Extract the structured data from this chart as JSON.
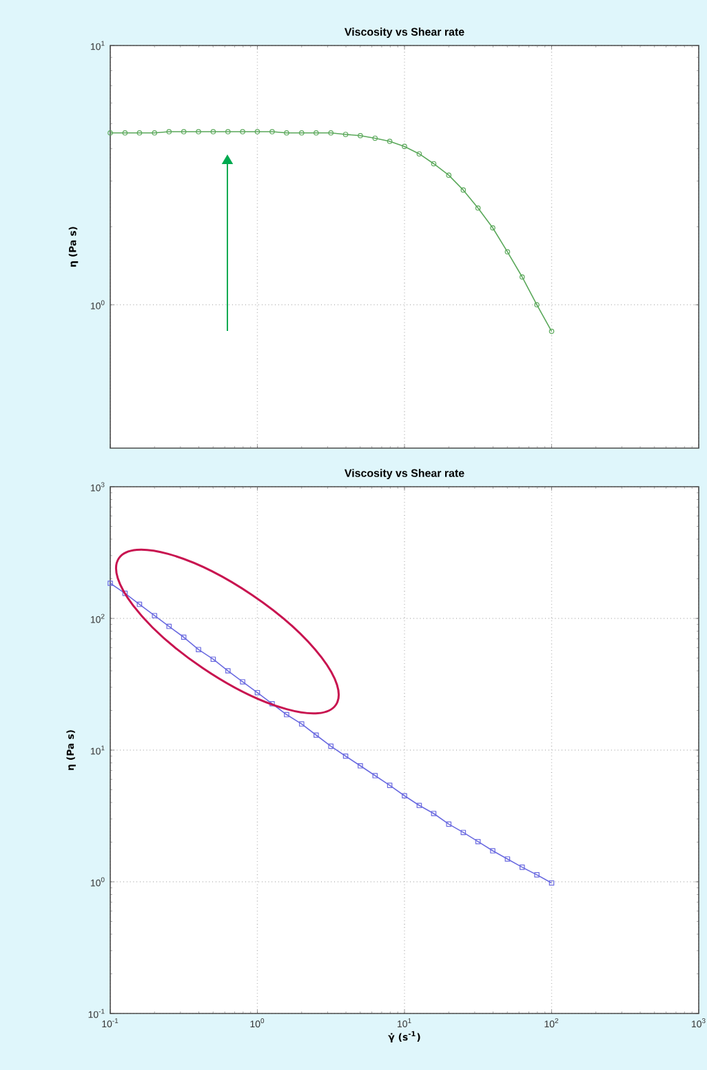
{
  "chart_data": [
    {
      "type": "line",
      "title": "Viscosity vs Shear rate",
      "ylabel": "η (Pa s)",
      "log": "xy",
      "grid": true,
      "marker": "circle",
      "line_style": "solid",
      "tick_labels": "y",
      "xlim": [
        0.1,
        1000
      ],
      "xticks": [
        0.1,
        1,
        10,
        100,
        1000
      ],
      "ylim": [
        0.28,
        10
      ],
      "yticks": [
        {
          "value": 1,
          "label": "10$^{0}$"
        },
        {
          "value": 10,
          "label": "10$^{1}$"
        }
      ],
      "series": [
        {
          "color": "#5aa85a",
          "x": [
            0.1,
            0.126,
            0.158,
            0.2,
            0.251,
            0.316,
            0.398,
            0.501,
            0.631,
            0.794,
            1,
            1.26,
            1.58,
            2,
            2.51,
            3.16,
            3.98,
            5.01,
            6.31,
            7.94,
            10,
            12.6,
            15.8,
            20,
            25.1,
            31.6,
            39.8,
            50.1,
            63.1,
            79.4,
            100
          ],
          "values": [
            4.6,
            4.6,
            4.6,
            4.6,
            4.65,
            4.65,
            4.65,
            4.65,
            4.65,
            4.65,
            4.65,
            4.65,
            4.6,
            4.6,
            4.6,
            4.6,
            4.54,
            4.49,
            4.39,
            4.27,
            4.08,
            3.82,
            3.5,
            3.16,
            2.77,
            2.36,
            1.98,
            1.6,
            1.28,
            1.0,
            0.79
          ]
        }
      ]
    },
    {
      "type": "line",
      "title": "Viscosity vs Shear rate",
      "xlabel": "γ̇ (s$^{-1}$)",
      "ylabel": "η (Pa s)",
      "log": "xy",
      "grid": true,
      "marker": "square",
      "line_style": "solid",
      "xlim": [
        0.1,
        1000
      ],
      "xticks": [
        {
          "value": 0.1,
          "label": "10$^{-1}$"
        },
        {
          "value": 1,
          "label": "10$^{0}$"
        },
        {
          "value": 10,
          "label": "10$^{1}$"
        },
        {
          "value": 100,
          "label": "10$^{2}$"
        },
        {
          "value": 1000,
          "label": "10$^{3}$"
        }
      ],
      "ylim": [
        0.1,
        1000
      ],
      "yticks": [
        {
          "value": 0.1,
          "label": "10$^{-1}$"
        },
        {
          "value": 1,
          "label": "10$^{0}$"
        },
        {
          "value": 10,
          "label": "10$^{1}$"
        },
        {
          "value": 100,
          "label": "10$^{2}$"
        },
        {
          "value": 1000,
          "label": "10$^{3}$"
        }
      ],
      "series": [
        {
          "color": "#6a6ae0",
          "x": [
            0.1,
            0.126,
            0.158,
            0.2,
            0.251,
            0.316,
            0.398,
            0.501,
            0.631,
            0.794,
            1,
            1.26,
            1.58,
            2,
            2.51,
            3.16,
            3.98,
            5.01,
            6.31,
            7.94,
            10,
            12.6,
            15.8,
            20,
            25.1,
            31.6,
            39.8,
            50.1,
            63.1,
            79.4,
            100
          ],
          "values": [
            185,
            155,
            128,
            105,
            87,
            72,
            58,
            49,
            40,
            33,
            27.3,
            22.5,
            18.6,
            15.8,
            13.0,
            10.7,
            9.0,
            7.6,
            6.4,
            5.4,
            4.5,
            3.8,
            3.3,
            2.74,
            2.37,
            2.02,
            1.72,
            1.49,
            1.29,
            1.13,
            0.98
          ]
        }
      ]
    }
  ]
}
